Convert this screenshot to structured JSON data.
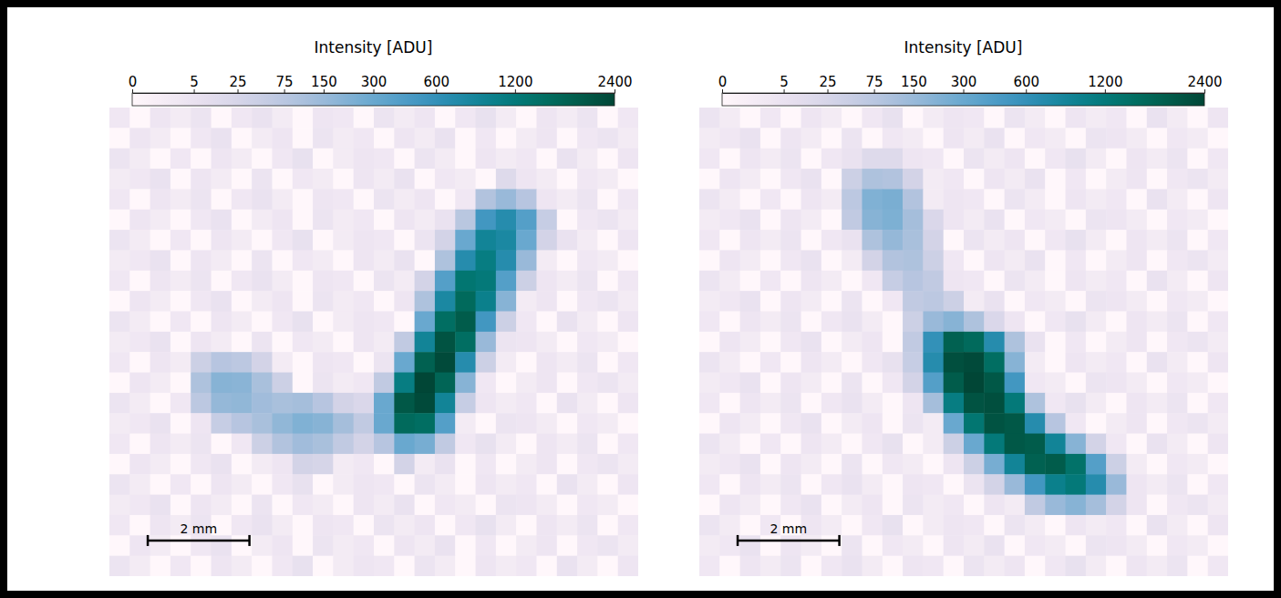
{
  "chart_data": [
    {
      "type": "heatmap",
      "color": "PuBuGn",
      "tick_labels": false,
      "xlim": [
        0,
        10.4
      ],
      "ylim": [
        0,
        9.2
      ],
      "colorbar": {
        "title": "Intensity [ADU]",
        "range": [
          0,
          2400
        ],
        "ticks": [
          0,
          5,
          25,
          75,
          150,
          300,
          600,
          1200,
          2400
        ]
      },
      "scale_bar": {
        "label": "2 mm",
        "length": 2
      },
      "cells": [
        [
          2,
          0,
          3,
          1,
          4,
          0,
          2,
          5,
          1,
          0,
          3,
          2,
          0,
          4,
          1,
          3,
          0,
          2,
          6,
          1,
          0,
          3,
          1,
          4,
          0,
          2
        ],
        [
          0,
          3,
          1,
          0,
          2,
          5,
          0,
          1,
          3,
          0,
          4,
          1,
          2,
          0,
          3,
          1,
          5,
          0,
          2,
          0,
          1,
          3,
          0,
          2,
          4,
          1
        ],
        [
          4,
          1,
          0,
          2,
          0,
          3,
          1,
          0,
          2,
          6,
          0,
          1,
          3,
          2,
          0,
          4,
          1,
          0,
          3,
          1,
          2,
          0,
          5,
          1,
          0,
          3
        ],
        [
          1,
          2,
          5,
          0,
          3,
          1,
          0,
          4,
          0,
          2,
          1,
          0,
          3,
          1,
          5,
          0,
          2,
          1,
          0,
          15,
          3,
          1,
          0,
          2,
          1,
          0
        ],
        [
          2,
          0,
          3,
          1,
          4,
          0,
          2,
          5,
          1,
          0,
          3,
          2,
          0,
          4,
          1,
          3,
          0,
          2,
          90,
          150,
          80,
          3,
          1,
          4,
          0,
          2
        ],
        [
          0,
          3,
          1,
          0,
          2,
          5,
          0,
          1,
          3,
          0,
          4,
          1,
          2,
          0,
          3,
          1,
          5,
          75,
          500,
          700,
          400,
          50,
          0,
          2,
          4,
          1
        ],
        [
          4,
          1,
          0,
          2,
          0,
          3,
          1,
          0,
          2,
          6,
          0,
          1,
          3,
          2,
          0,
          4,
          30,
          300,
          900,
          800,
          300,
          30,
          5,
          1,
          0,
          3
        ],
        [
          1,
          2,
          5,
          0,
          3,
          1,
          0,
          4,
          0,
          2,
          1,
          0,
          3,
          1,
          5,
          0,
          100,
          700,
          1100,
          700,
          150,
          1,
          0,
          2,
          1,
          0
        ],
        [
          2,
          0,
          3,
          1,
          4,
          0,
          2,
          5,
          1,
          0,
          3,
          2,
          0,
          4,
          1,
          30,
          400,
          1300,
          1200,
          400,
          40,
          3,
          1,
          4,
          0,
          2
        ],
        [
          0,
          3,
          1,
          0,
          2,
          5,
          0,
          1,
          3,
          0,
          4,
          1,
          2,
          0,
          3,
          100,
          800,
          1600,
          1000,
          200,
          1,
          3,
          0,
          2,
          4,
          1
        ],
        [
          4,
          1,
          0,
          2,
          0,
          3,
          1,
          0,
          2,
          6,
          0,
          1,
          3,
          2,
          0,
          300,
          1500,
          1900,
          500,
          40,
          2,
          0,
          5,
          1,
          0,
          3
        ],
        [
          1,
          2,
          5,
          0,
          3,
          1,
          0,
          4,
          0,
          2,
          1,
          0,
          3,
          1,
          60,
          900,
          2100,
          1500,
          150,
          4,
          3,
          1,
          0,
          2,
          1,
          0
        ],
        [
          2,
          0,
          3,
          1,
          40,
          80,
          70,
          30,
          1,
          0,
          3,
          2,
          0,
          4,
          300,
          1800,
          2300,
          700,
          40,
          1,
          0,
          3,
          1,
          4,
          0,
          2
        ],
        [
          0,
          3,
          1,
          0,
          100,
          200,
          190,
          110,
          40,
          0,
          4,
          1,
          2,
          60,
          1100,
          2400,
          1700,
          200,
          2,
          0,
          1,
          3,
          0,
          2,
          4,
          1
        ],
        [
          4,
          1,
          0,
          2,
          70,
          160,
          170,
          130,
          110,
          120,
          80,
          30,
          20,
          300,
          2000,
          2300,
          900,
          50,
          3,
          1,
          2,
          0,
          5,
          1,
          0,
          3
        ],
        [
          1,
          2,
          5,
          0,
          3,
          50,
          80,
          110,
          170,
          220,
          200,
          120,
          60,
          300,
          1600,
          1500,
          400,
          1,
          0,
          4,
          3,
          1,
          0,
          2,
          1,
          0
        ],
        [
          2,
          0,
          3,
          1,
          4,
          0,
          2,
          40,
          90,
          130,
          110,
          60,
          30,
          80,
          300,
          250,
          60,
          2,
          6,
          1,
          0,
          3,
          1,
          4,
          0,
          2
        ],
        [
          0,
          3,
          1,
          0,
          2,
          5,
          0,
          1,
          3,
          30,
          25,
          1,
          2,
          0,
          30,
          1,
          5,
          0,
          2,
          0,
          1,
          3,
          0,
          2,
          4,
          1
        ],
        [
          4,
          1,
          0,
          2,
          0,
          3,
          1,
          0,
          2,
          6,
          0,
          1,
          3,
          2,
          0,
          4,
          1,
          0,
          3,
          1,
          2,
          0,
          5,
          1,
          0,
          3
        ],
        [
          1,
          2,
          5,
          0,
          3,
          1,
          0,
          4,
          0,
          2,
          1,
          0,
          3,
          1,
          5,
          0,
          2,
          1,
          0,
          4,
          3,
          1,
          0,
          2,
          1,
          0
        ],
        [
          2,
          0,
          3,
          1,
          4,
          0,
          2,
          5,
          1,
          0,
          3,
          2,
          0,
          4,
          1,
          3,
          0,
          2,
          6,
          1,
          0,
          3,
          1,
          4,
          0,
          2
        ],
        [
          0,
          3,
          1,
          0,
          2,
          5,
          0,
          1,
          3,
          0,
          4,
          1,
          2,
          0,
          3,
          1,
          5,
          0,
          2,
          0,
          1,
          3,
          0,
          2,
          4,
          1
        ],
        [
          4,
          1,
          0,
          2,
          0,
          3,
          1,
          0,
          2,
          6,
          0,
          1,
          3,
          2,
          0,
          4,
          1,
          0,
          3,
          1,
          2,
          0,
          5,
          1,
          0,
          3
        ]
      ]
    },
    {
      "type": "heatmap",
      "color": "PuBuGn",
      "tick_labels": false,
      "xlim": [
        0,
        10.4
      ],
      "ylim": [
        0,
        9.2
      ],
      "colorbar": {
        "title": "Intensity [ADU]",
        "range": [
          0,
          2400
        ],
        "ticks": [
          0,
          5,
          25,
          75,
          150,
          300,
          600,
          1200,
          2400
        ]
      },
      "scale_bar": {
        "label": "2 mm",
        "length": 2
      },
      "cells": [
        [
          4,
          1,
          0,
          2,
          0,
          3,
          1,
          0,
          2,
          6,
          0,
          1,
          3,
          2,
          0,
          4,
          1,
          0,
          3,
          1,
          2,
          0,
          5,
          1,
          0,
          3
        ],
        [
          1,
          2,
          5,
          0,
          3,
          1,
          0,
          4,
          0,
          2,
          1,
          0,
          3,
          1,
          5,
          0,
          2,
          1,
          0,
          4,
          3,
          1,
          0,
          2,
          1,
          0
        ],
        [
          2,
          0,
          3,
          1,
          4,
          0,
          2,
          5,
          15,
          15,
          3,
          2,
          0,
          4,
          1,
          3,
          0,
          2,
          6,
          1,
          0,
          3,
          1,
          4,
          0,
          2
        ],
        [
          0,
          3,
          1,
          0,
          2,
          5,
          0,
          40,
          100,
          90,
          30,
          1,
          2,
          0,
          3,
          1,
          5,
          0,
          2,
          0,
          1,
          3,
          0,
          2,
          4,
          1
        ],
        [
          4,
          1,
          0,
          2,
          0,
          3,
          1,
          70,
          220,
          240,
          90,
          1,
          3,
          2,
          0,
          4,
          1,
          0,
          3,
          1,
          2,
          0,
          5,
          1,
          0,
          3
        ],
        [
          1,
          2,
          5,
          0,
          3,
          1,
          0,
          60,
          200,
          230,
          120,
          20,
          3,
          1,
          5,
          0,
          2,
          1,
          0,
          4,
          3,
          1,
          0,
          2,
          1,
          0
        ],
        [
          2,
          0,
          3,
          1,
          4,
          0,
          2,
          5,
          100,
          160,
          110,
          30,
          0,
          4,
          1,
          3,
          0,
          2,
          6,
          1,
          0,
          3,
          1,
          4,
          0,
          2
        ],
        [
          0,
          3,
          1,
          0,
          2,
          5,
          0,
          1,
          30,
          90,
          100,
          40,
          2,
          0,
          3,
          1,
          5,
          0,
          2,
          0,
          1,
          3,
          0,
          2,
          4,
          1
        ],
        [
          4,
          1,
          0,
          2,
          0,
          3,
          1,
          0,
          2,
          50,
          80,
          60,
          3,
          2,
          0,
          4,
          1,
          0,
          3,
          1,
          2,
          0,
          5,
          1,
          0,
          3
        ],
        [
          1,
          2,
          5,
          0,
          3,
          1,
          0,
          4,
          0,
          2,
          60,
          70,
          40,
          1,
          5,
          0,
          2,
          1,
          0,
          4,
          3,
          1,
          0,
          2,
          1,
          0
        ],
        [
          2,
          0,
          3,
          1,
          4,
          0,
          2,
          5,
          1,
          0,
          40,
          150,
          200,
          100,
          20,
          3,
          0,
          2,
          6,
          1,
          0,
          3,
          1,
          4,
          0,
          2
        ],
        [
          0,
          3,
          1,
          0,
          2,
          5,
          0,
          1,
          3,
          0,
          60,
          600,
          1800,
          1600,
          700,
          100,
          5,
          0,
          2,
          0,
          1,
          3,
          0,
          2,
          4,
          1
        ],
        [
          4,
          1,
          0,
          2,
          0,
          3,
          1,
          0,
          2,
          6,
          50,
          700,
          2200,
          2300,
          1500,
          200,
          1,
          0,
          3,
          1,
          2,
          0,
          5,
          1,
          0,
          3
        ],
        [
          1,
          2,
          5,
          0,
          3,
          1,
          0,
          4,
          0,
          2,
          30,
          400,
          1900,
          2400,
          2000,
          500,
          2,
          1,
          0,
          4,
          3,
          1,
          0,
          2,
          1,
          0
        ],
        [
          2,
          0,
          3,
          1,
          4,
          0,
          2,
          5,
          1,
          0,
          3,
          120,
          1100,
          2100,
          2200,
          1200,
          100,
          2,
          6,
          1,
          0,
          3,
          1,
          4,
          0,
          2
        ],
        [
          0,
          3,
          1,
          0,
          2,
          5,
          0,
          1,
          3,
          0,
          4,
          1,
          300,
          1300,
          2100,
          2000,
          700,
          80,
          2,
          0,
          1,
          3,
          0,
          2,
          4,
          1
        ],
        [
          4,
          1,
          0,
          2,
          0,
          3,
          1,
          0,
          2,
          6,
          0,
          1,
          40,
          300,
          1200,
          2000,
          1900,
          900,
          200,
          30,
          2,
          0,
          5,
          1,
          0,
          3
        ],
        [
          1,
          2,
          5,
          0,
          3,
          1,
          0,
          4,
          0,
          2,
          1,
          0,
          3,
          40,
          250,
          900,
          1800,
          1900,
          1400,
          400,
          40,
          1,
          0,
          2,
          1,
          0
        ],
        [
          2,
          0,
          3,
          1,
          4,
          0,
          2,
          5,
          1,
          0,
          3,
          2,
          0,
          4,
          30,
          150,
          500,
          1000,
          1200,
          700,
          150,
          3,
          1,
          4,
          0,
          2
        ],
        [
          0,
          3,
          1,
          0,
          2,
          5,
          0,
          1,
          3,
          0,
          4,
          1,
          2,
          0,
          3,
          1,
          60,
          150,
          200,
          120,
          30,
          3,
          0,
          2,
          4,
          1
        ],
        [
          4,
          1,
          0,
          2,
          0,
          3,
          1,
          0,
          2,
          6,
          0,
          1,
          3,
          2,
          0,
          4,
          1,
          0,
          3,
          1,
          2,
          0,
          5,
          1,
          0,
          3
        ],
        [
          1,
          2,
          5,
          0,
          3,
          1,
          0,
          4,
          0,
          2,
          1,
          0,
          3,
          1,
          5,
          0,
          2,
          1,
          0,
          4,
          3,
          1,
          0,
          2,
          1,
          0
        ],
        [
          2,
          0,
          3,
          1,
          4,
          0,
          2,
          5,
          1,
          0,
          3,
          2,
          0,
          4,
          1,
          3,
          0,
          2,
          6,
          1,
          0,
          3,
          1,
          4,
          0,
          2
        ]
      ]
    }
  ]
}
